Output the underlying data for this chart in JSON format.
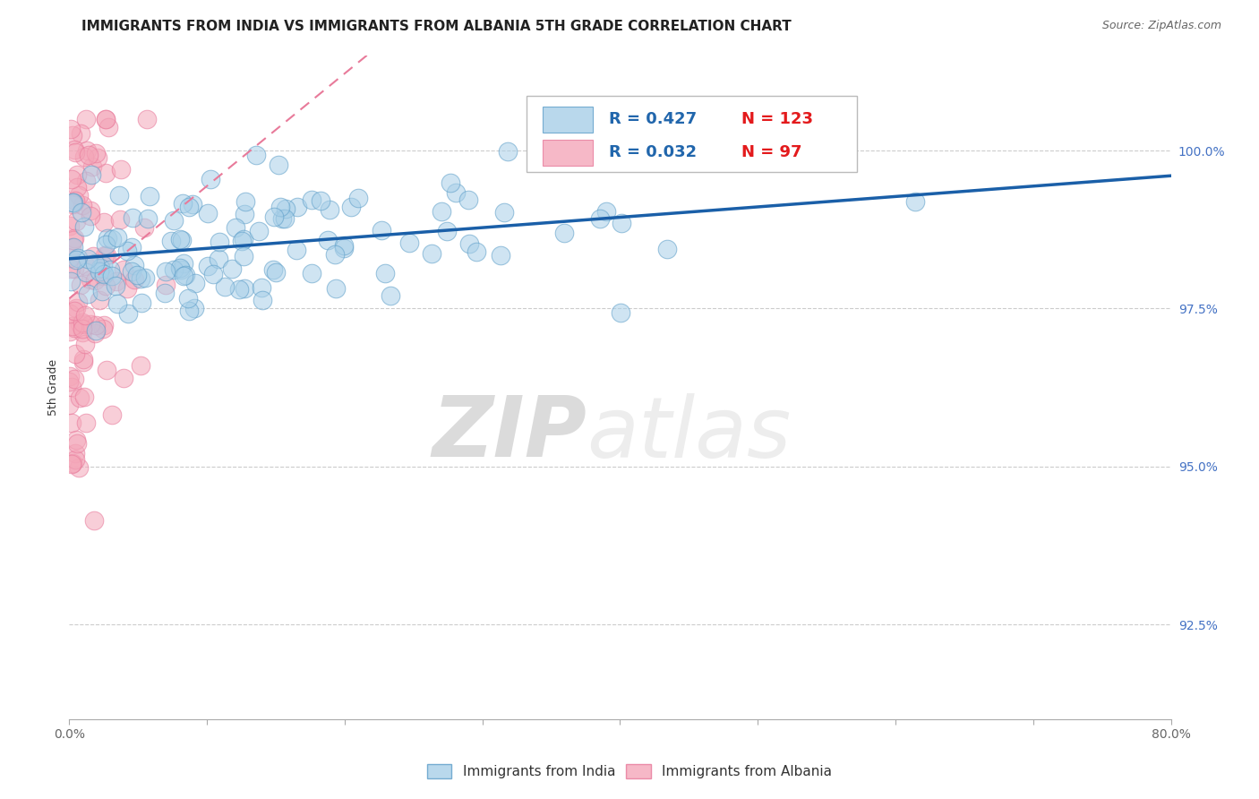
{
  "title": "IMMIGRANTS FROM INDIA VS IMMIGRANTS FROM ALBANIA 5TH GRADE CORRELATION CHART",
  "source": "Source: ZipAtlas.com",
  "xlabel_india": "Immigrants from India",
  "xlabel_albania": "Immigrants from Albania",
  "ylabel": "5th Grade",
  "xlim": [
    0.0,
    80.0
  ],
  "ylim": [
    91.0,
    101.5
  ],
  "ytick_labels": [
    "92.5%",
    "95.0%",
    "97.5%",
    "100.0%"
  ],
  "ytick_values": [
    92.5,
    95.0,
    97.5,
    100.0
  ],
  "india_color": "#a8cfe8",
  "albania_color": "#f4a7b9",
  "india_R": 0.427,
  "india_N": 123,
  "albania_R": 0.032,
  "albania_N": 97,
  "india_trend_color": "#1a5fa8",
  "albania_trend_color": "#e87a9a",
  "watermark_zip_color": "#aaaaaa",
  "watermark_atlas_color": "#cccccc",
  "legend_color": "#2166ac",
  "legend_N_color": "#e31a1c",
  "background_color": "#ffffff",
  "grid_color": "#cccccc",
  "title_fontsize": 11,
  "axis_label_fontsize": 9,
  "tick_fontsize": 10,
  "legend_fontsize": 13
}
